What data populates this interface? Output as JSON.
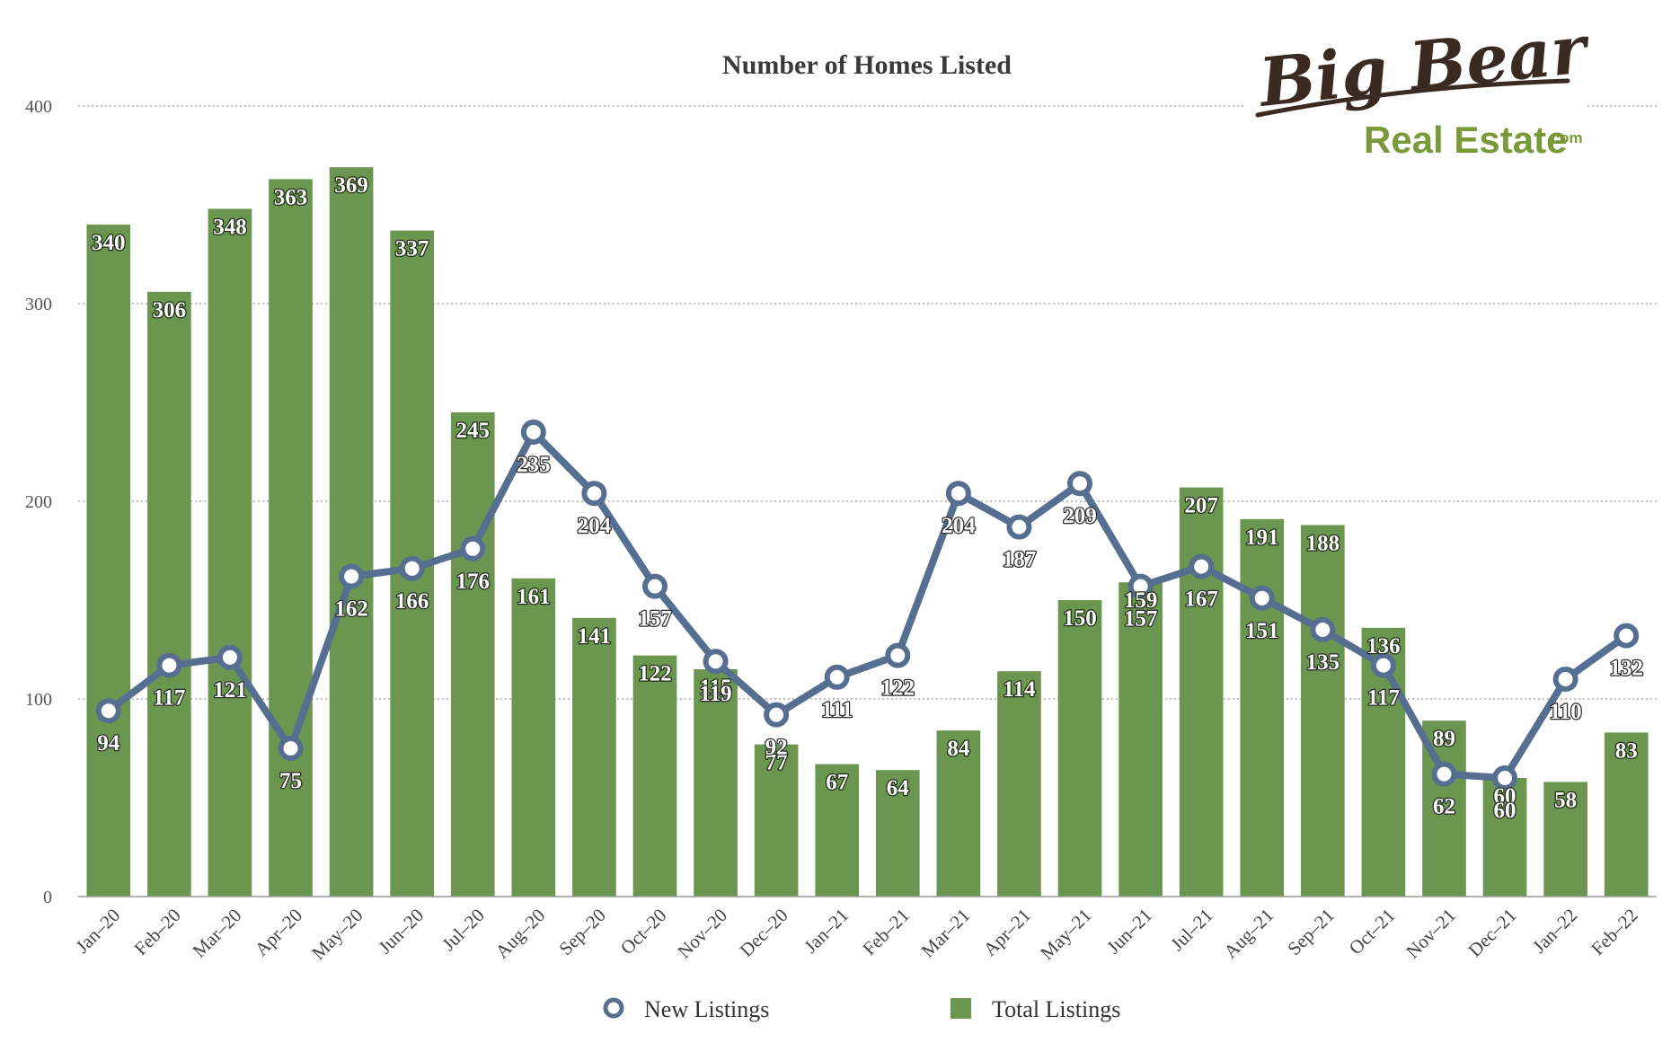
{
  "chart_data": {
    "type": "bar",
    "title": "Number of Homes Listed",
    "xlabel": "",
    "ylabel": "",
    "ylim": [
      0,
      400
    ],
    "yticks": [
      0,
      100,
      200,
      300,
      400
    ],
    "grid": "horizontal dotted",
    "legend_position": "bottom",
    "categories": [
      "Jan–20",
      "Feb–20",
      "Mar–20",
      "Apr–20",
      "May–20",
      "Jun–20",
      "Jul–20",
      "Aug–20",
      "Sep–20",
      "Oct–20",
      "Nov–20",
      "Dec–20",
      "Jan–21",
      "Feb–21",
      "Mar–21",
      "Apr–21",
      "May–21",
      "Jun–21",
      "Jul–21",
      "Aug–21",
      "Sep–21",
      "Oct–21",
      "Nov–21",
      "Dec–21",
      "Jan–22",
      "Feb–22"
    ],
    "series": [
      {
        "name": "Total Listings",
        "kind": "bar",
        "color": "#6a9650",
        "values": [
          340,
          306,
          348,
          363,
          369,
          337,
          245,
          161,
          141,
          122,
          115,
          77,
          67,
          64,
          84,
          114,
          150,
          159,
          207,
          191,
          188,
          136,
          89,
          60,
          58,
          83
        ]
      },
      {
        "name": "New Listings",
        "kind": "line",
        "color": "#566f90",
        "values": [
          94,
          117,
          121,
          75,
          162,
          166,
          176,
          235,
          204,
          157,
          119,
          92,
          111,
          122,
          204,
          187,
          209,
          157,
          167,
          151,
          135,
          117,
          62,
          60,
          110,
          132
        ]
      }
    ]
  },
  "logo": {
    "line1": "Big Bear",
    "line2": "Real Estate",
    "suffix": ".com",
    "colors": {
      "dark": "#3b2a22",
      "green": "#7a9a3a"
    }
  }
}
